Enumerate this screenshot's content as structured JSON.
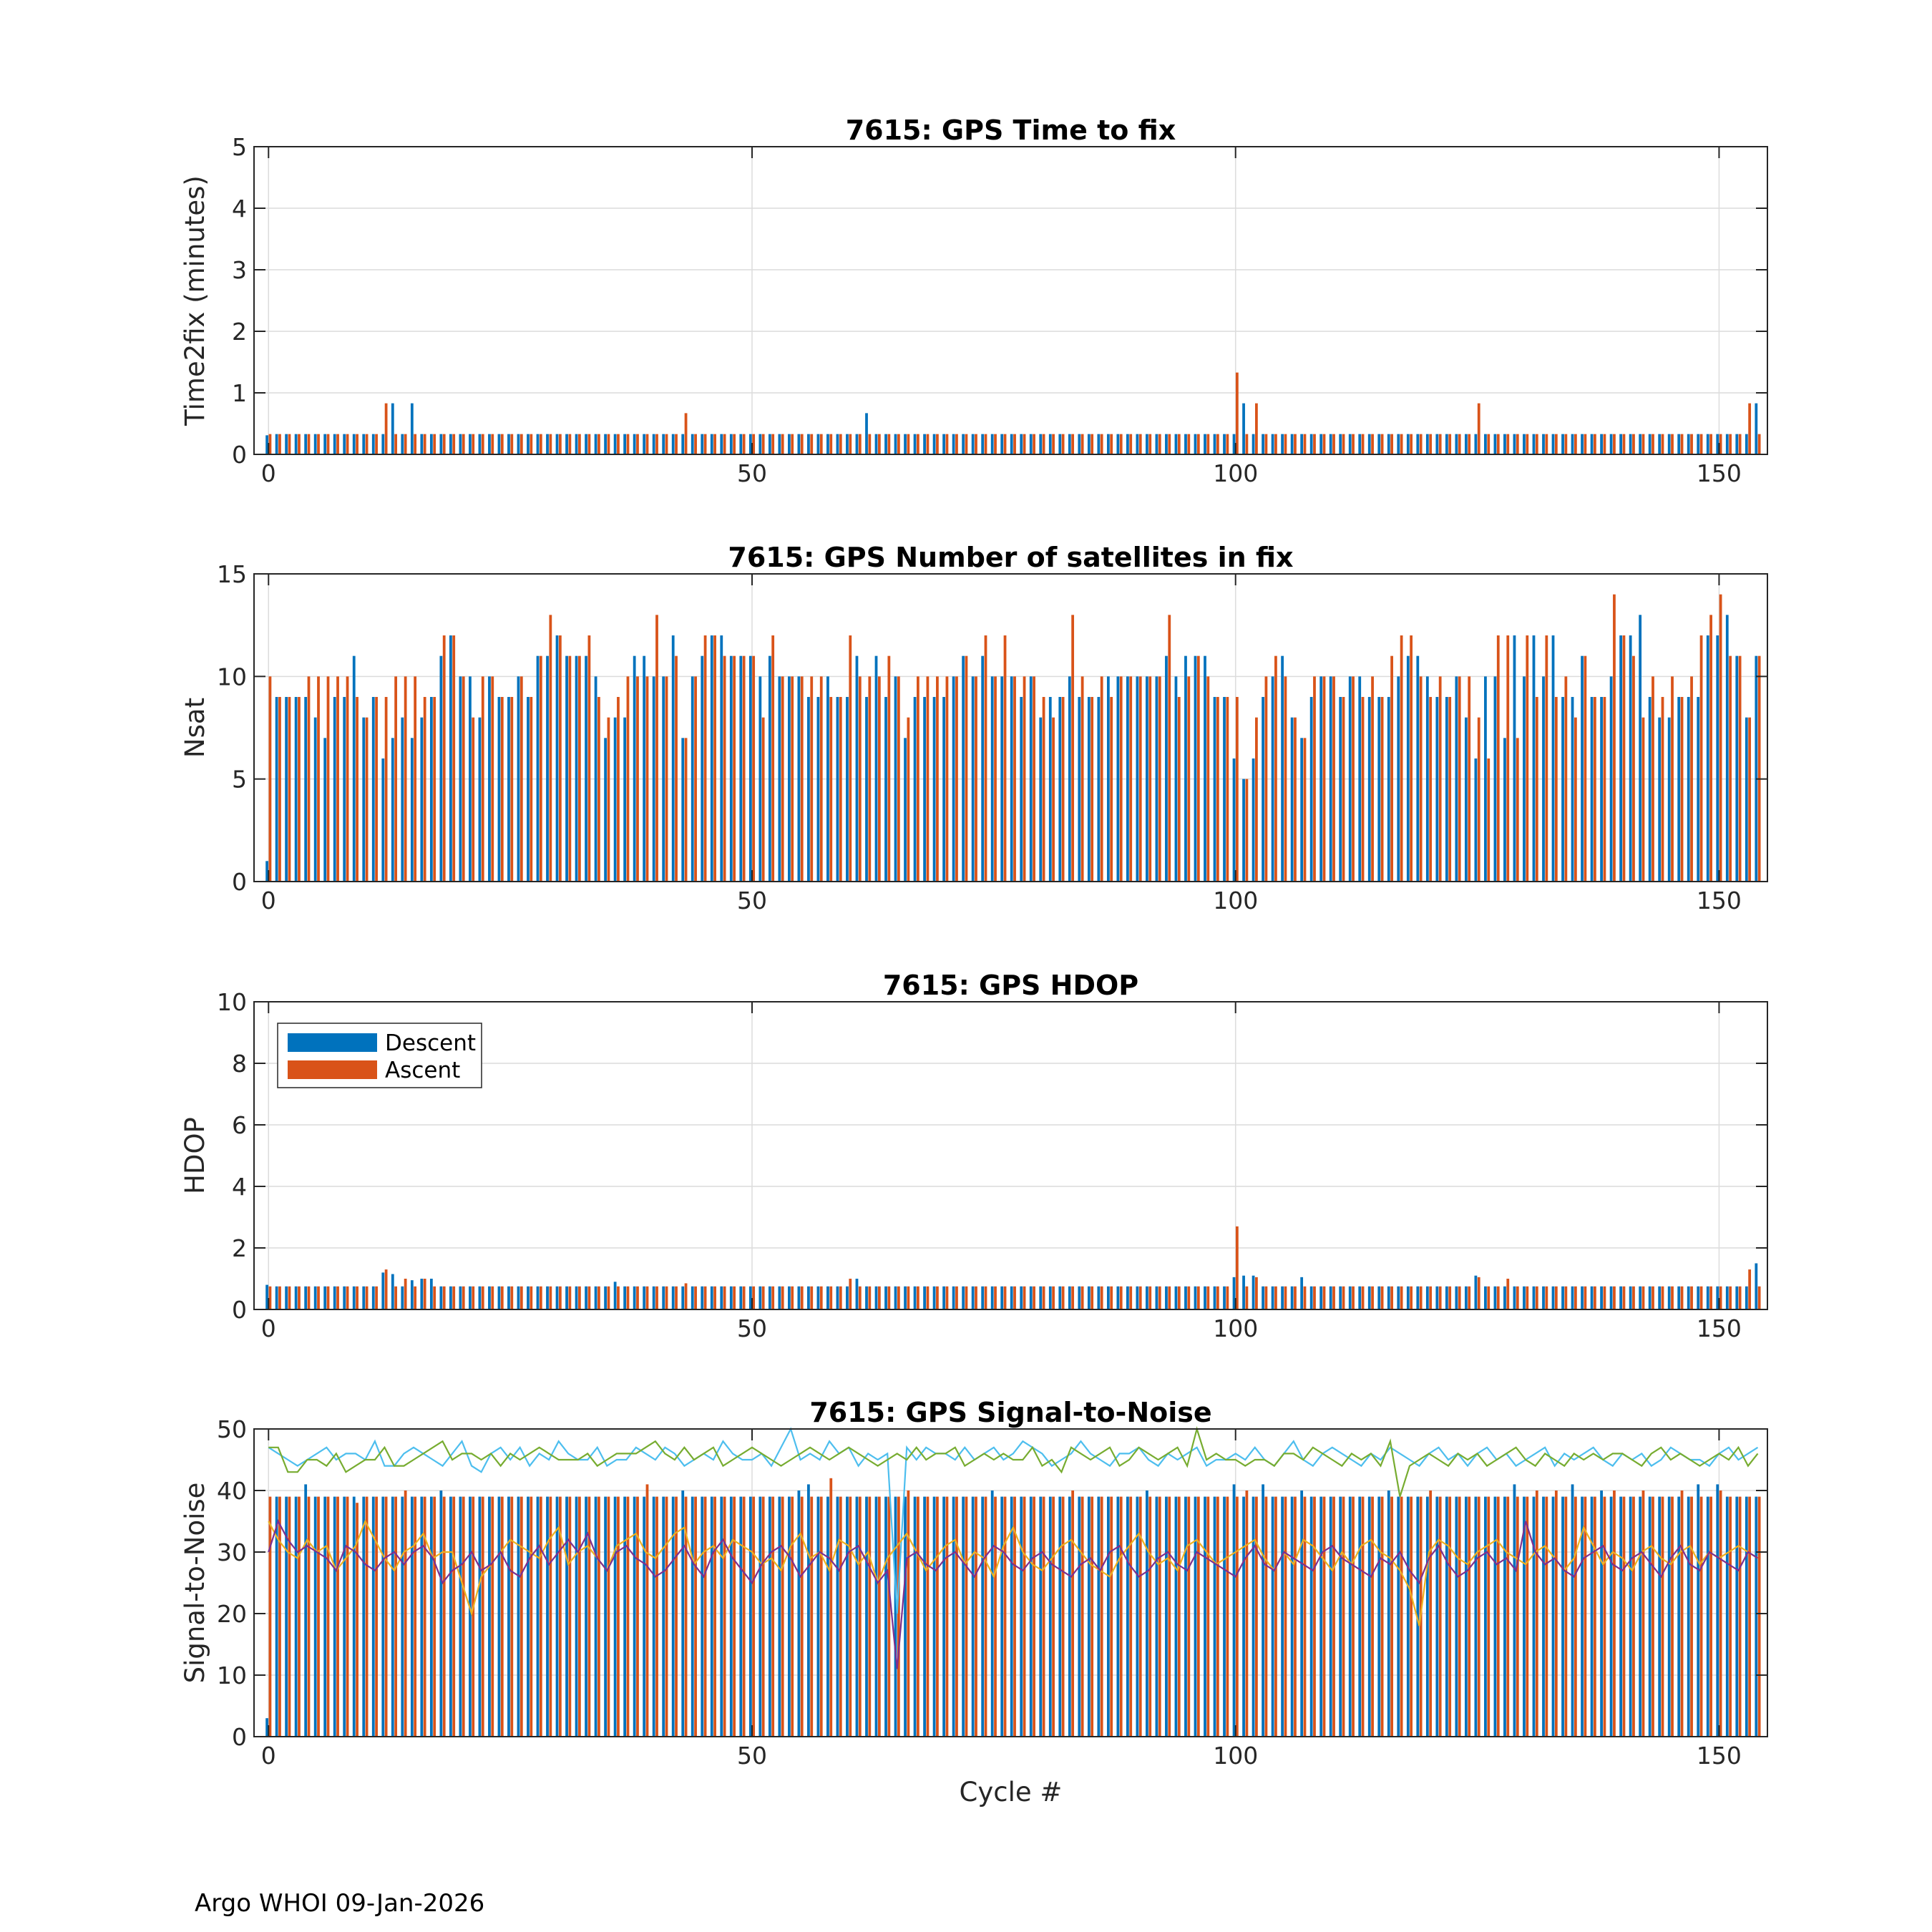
{
  "footer": "Argo WHOI 09-Jan-2026",
  "colors": {
    "descent": "#0072BD",
    "ascent": "#D95319",
    "snr_lines": [
      "#4DBEEE",
      "#77AC30",
      "#EDB120",
      "#7E2F8E"
    ],
    "grid": "#dcdcdc",
    "axis": "#262626"
  },
  "legend": {
    "location": "northwest",
    "entries": [
      "Descent",
      "Ascent"
    ]
  },
  "chart_data": [
    {
      "type": "bar",
      "title": "7615: GPS Time to fix",
      "xlabel": "",
      "ylabel": "Time2fix (minutes)",
      "xlim": [
        -1.5,
        155
      ],
      "ylim": [
        0,
        5
      ],
      "xticks": [
        0,
        50,
        100,
        150
      ],
      "yticks": [
        0,
        1,
        2,
        3,
        4,
        5
      ],
      "x": "cycles 0-154",
      "baseline": {
        "descent": 0.33,
        "ascent": 0.33
      },
      "overrides": {
        "descent": {
          "0": 0.31,
          "13": 0.83,
          "15": 0.83,
          "62": 0.67,
          "101": 0.83,
          "154": 0.83
        },
        "ascent": {
          "12": 0.83,
          "43": 0.67,
          "100": 1.33,
          "102": 0.83,
          "125": 0.83,
          "153": 0.83
        }
      }
    },
    {
      "type": "bar",
      "title": "7615: GPS Number of satellites in fix",
      "xlabel": "",
      "ylabel": "Nsat",
      "xlim": [
        -1.5,
        155
      ],
      "ylim": [
        0,
        15
      ],
      "xticks": [
        0,
        50,
        100,
        150
      ],
      "yticks": [
        0,
        5,
        10,
        15
      ],
      "x": "cycles 0-154",
      "series": [
        {
          "name": "Descent",
          "values": [
            1,
            9,
            9,
            9,
            9,
            8,
            7,
            9,
            9,
            11,
            8,
            9,
            6,
            7,
            8,
            7,
            8,
            9,
            11,
            12,
            10,
            10,
            8,
            10,
            9,
            9,
            10,
            9,
            11,
            11,
            12,
            11,
            11,
            11,
            10,
            7,
            8,
            8,
            11,
            11,
            10,
            10,
            12,
            7,
            10,
            11,
            12,
            12,
            11,
            11,
            11,
            10,
            11,
            10,
            10,
            10,
            9,
            9,
            10,
            9,
            9,
            11,
            9,
            11,
            9,
            10,
            7,
            9,
            9,
            9,
            9,
            10,
            11,
            10,
            11,
            10,
            10,
            10,
            9,
            10,
            8,
            9,
            9,
            10,
            9,
            9,
            9,
            10,
            10,
            10,
            10,
            10,
            10,
            11,
            10,
            11,
            11,
            11,
            9,
            9,
            6,
            5,
            6,
            9,
            10,
            11,
            8,
            7,
            9,
            10,
            10,
            9,
            10,
            10,
            9,
            9,
            9,
            10,
            11,
            11,
            10,
            9,
            9,
            10,
            8,
            6,
            10,
            10,
            7,
            12,
            10,
            12,
            10,
            12,
            9,
            9,
            11,
            9,
            9,
            10,
            12,
            12,
            13,
            9,
            8,
            8,
            9,
            9,
            9,
            12,
            12,
            13,
            11,
            8,
            11,
            7
          ],
          "note": "156 values read, last used up to index 154"
        },
        {
          "name": "Ascent",
          "values": [
            10,
            9,
            9,
            9,
            10,
            10,
            10,
            10,
            10,
            9,
            8,
            9,
            9,
            10,
            10,
            10,
            9,
            9,
            12,
            12,
            10,
            8,
            10,
            10,
            9,
            9,
            10,
            9,
            11,
            13,
            12,
            11,
            11,
            12,
            9,
            8,
            9,
            10,
            10,
            10,
            13,
            10,
            11,
            7,
            10,
            12,
            12,
            11,
            11,
            11,
            11,
            8,
            12,
            10,
            10,
            10,
            10,
            10,
            9,
            9,
            12,
            10,
            10,
            10,
            11,
            10,
            8,
            10,
            10,
            10,
            10,
            10,
            11,
            10,
            12,
            10,
            12,
            10,
            10,
            10,
            9,
            8,
            9,
            13,
            10,
            9,
            10,
            9,
            10,
            10,
            10,
            10,
            10,
            13,
            9,
            10,
            11,
            10,
            9,
            9,
            9,
            5,
            8,
            10,
            11,
            10,
            8,
            7,
            10,
            10,
            10,
            9,
            10,
            9,
            10,
            9,
            11,
            12,
            12,
            10,
            9,
            10,
            9,
            10,
            10,
            8,
            6,
            12,
            12,
            7,
            12,
            9,
            12,
            9,
            10,
            8,
            11,
            9,
            9,
            14,
            12,
            11,
            8,
            10,
            9,
            10,
            9,
            10,
            12,
            13,
            14,
            11,
            11,
            8,
            11,
            6
          ]
        }
      ]
    },
    {
      "type": "bar",
      "title": "7615: GPS HDOP",
      "xlabel": "",
      "ylabel": "HDOP",
      "xlim": [
        -1.5,
        155
      ],
      "ylim": [
        0,
        10
      ],
      "xticks": [
        0,
        50,
        100,
        150
      ],
      "yticks": [
        0,
        2,
        4,
        6,
        8,
        10
      ],
      "x": "cycles 0-154",
      "baseline": {
        "descent": 0.75,
        "ascent": 0.75
      },
      "overrides": {
        "descent": {
          "0": 0.8,
          "12": 1.2,
          "13": 1.15,
          "15": 0.95,
          "16": 1.0,
          "17": 1.0,
          "36": 0.9,
          "61": 1.0,
          "100": 1.05,
          "101": 1.1,
          "102": 1.1,
          "107": 1.05,
          "125": 1.1,
          "154": 1.5
        },
        "ascent": {
          "12": 1.3,
          "14": 1.0,
          "16": 1.0,
          "43": 0.85,
          "60": 1.0,
          "100": 2.7,
          "102": 1.05,
          "125": 1.05,
          "128": 1.0,
          "153": 1.3
        }
      }
    },
    {
      "type": "bar",
      "title": "7615: GPS Signal-to-Noise",
      "xlabel": "Cycle #",
      "ylabel": "Signal-to-Noise",
      "xlim": [
        -1.5,
        155
      ],
      "ylim": [
        0,
        50
      ],
      "xticks": [
        0,
        50,
        100,
        150
      ],
      "yticks": [
        0,
        10,
        20,
        30,
        40,
        50
      ],
      "x": "cycles 0-154",
      "bars": {
        "descent_baseline": 39,
        "ascent_baseline": 39,
        "descent_overrides": {
          "0": 3,
          "4": 41,
          "8": 39,
          "18": 40,
          "43": 40,
          "47": 39,
          "55": 40,
          "56": 41,
          "75": 40,
          "91": 40,
          "100": 41,
          "103": 41,
          "107": 40,
          "116": 40,
          "129": 41,
          "135": 41,
          "138": 40,
          "148": 41,
          "150": 41
        },
        "ascent_overrides": {
          "9": 38,
          "14": 40,
          "20": 39,
          "39": 41,
          "58": 42,
          "66": 40,
          "83": 40,
          "101": 40,
          "120": 40,
          "131": 40,
          "133": 40,
          "139": 40,
          "142": 40,
          "146": 40,
          "150": 40
        }
      },
      "lines": [
        {
          "name": "max",
          "color": "#4DBEEE",
          "values": [
            47,
            46,
            45,
            44,
            45,
            46,
            47,
            45,
            46,
            46,
            45,
            48,
            44,
            44,
            46,
            47,
            46,
            45,
            44,
            46,
            48,
            44,
            43,
            46,
            47,
            45,
            47,
            44,
            46,
            45,
            48,
            46,
            45,
            45,
            47,
            44,
            45,
            45,
            47,
            46,
            45,
            47,
            46,
            44,
            45,
            46,
            45,
            48,
            46,
            45,
            45,
            46,
            44,
            47,
            50,
            45,
            46,
            45,
            48,
            46,
            47,
            44,
            46,
            45,
            46,
            20,
            47,
            45,
            47,
            46,
            46,
            45,
            47,
            45,
            46,
            47,
            45,
            46,
            48,
            47,
            46,
            44,
            45,
            46,
            48,
            46,
            45,
            44,
            46,
            46,
            47,
            45,
            44,
            46,
            45,
            46,
            47,
            44,
            45,
            45,
            46,
            45,
            47,
            45,
            44,
            46,
            48,
            45,
            44,
            46,
            47,
            46,
            45,
            44,
            46,
            45,
            47,
            46,
            45,
            44,
            46,
            47,
            45,
            46,
            44,
            46,
            47,
            45,
            46,
            44,
            45,
            46,
            47,
            44,
            46,
            45,
            46,
            47,
            45,
            44,
            46,
            45,
            46,
            44,
            45,
            47,
            46,
            45,
            45,
            44,
            46,
            47,
            45,
            46,
            47,
            42
          ]
        },
        {
          "name": "mean-high",
          "color": "#77AC30",
          "values": [
            47,
            47,
            43,
            43,
            45,
            45,
            44,
            46,
            43,
            44,
            45,
            45,
            47,
            44,
            44,
            45,
            46,
            47,
            48,
            45,
            46,
            46,
            45,
            46,
            44,
            46,
            45,
            46,
            47,
            46,
            45,
            45,
            45,
            46,
            44,
            45,
            46,
            46,
            46,
            47,
            48,
            46,
            45,
            47,
            45,
            46,
            47,
            44,
            45,
            46,
            47,
            46,
            45,
            44,
            45,
            46,
            47,
            46,
            45,
            46,
            47,
            46,
            45,
            44,
            45,
            46,
            45,
            47,
            45,
            46,
            46,
            47,
            44,
            45,
            46,
            45,
            46,
            45,
            45,
            47,
            44,
            45,
            43,
            47,
            46,
            45,
            46,
            47,
            44,
            45,
            47,
            46,
            45,
            46,
            47,
            44,
            50,
            45,
            46,
            45,
            45,
            44,
            45,
            45,
            44,
            46,
            46,
            45,
            47,
            46,
            45,
            44,
            46,
            45,
            46,
            44,
            48,
            39,
            44,
            45,
            46,
            45,
            44,
            46,
            45,
            46,
            44,
            45,
            46,
            47,
            45,
            44,
            46,
            45,
            44,
            46,
            45,
            46,
            45,
            46,
            46,
            45,
            44,
            46,
            47,
            45,
            46,
            45,
            44,
            45,
            46,
            45,
            47,
            44,
            46,
            43
          ]
        },
        {
          "name": "mean",
          "color": "#EDB120",
          "values": [
            35,
            32,
            30,
            29,
            32,
            30,
            31,
            27,
            29,
            31,
            35,
            32,
            29,
            27,
            30,
            31,
            33,
            29,
            30,
            30,
            25,
            20,
            26,
            28,
            30,
            32,
            31,
            30,
            29,
            32,
            34,
            28,
            30,
            31,
            29,
            27,
            31,
            32,
            33,
            30,
            29,
            31,
            33,
            34,
            28,
            30,
            31,
            29,
            32,
            31,
            30,
            28,
            29,
            27,
            31,
            33,
            29,
            30,
            27,
            32,
            31,
            28,
            30,
            25,
            29,
            31,
            33,
            30,
            27,
            29,
            31,
            32,
            28,
            30,
            29,
            26,
            31,
            34,
            30,
            28,
            27,
            29,
            31,
            32,
            30,
            28,
            27,
            26,
            29,
            31,
            33,
            30,
            28,
            29,
            27,
            31,
            32,
            30,
            28,
            29,
            30,
            31,
            32,
            29,
            27,
            30,
            28,
            32,
            31,
            29,
            27,
            30,
            28,
            31,
            32,
            30,
            29,
            27,
            24,
            18,
            30,
            32,
            31,
            29,
            28,
            30,
            31,
            32,
            30,
            29,
            28,
            30,
            31,
            29,
            27,
            29,
            34,
            31,
            28,
            30,
            29,
            27,
            30,
            31,
            29,
            28,
            30,
            31,
            28,
            30,
            29,
            30,
            31,
            30,
            29,
            34
          ]
        },
        {
          "name": "min",
          "color": "#7E2F8E",
          "values": [
            30,
            35,
            32,
            30,
            31,
            30,
            29,
            27,
            31,
            30,
            28,
            27,
            29,
            30,
            28,
            30,
            31,
            29,
            25,
            27,
            28,
            30,
            27,
            28,
            30,
            27,
            26,
            29,
            31,
            28,
            30,
            32,
            30,
            33,
            29,
            27,
            30,
            31,
            29,
            28,
            26,
            27,
            29,
            31,
            28,
            26,
            30,
            32,
            29,
            27,
            25,
            28,
            30,
            31,
            29,
            26,
            28,
            30,
            29,
            27,
            30,
            31,
            28,
            25,
            27,
            11,
            29,
            30,
            28,
            27,
            29,
            30,
            28,
            26,
            29,
            31,
            30,
            28,
            27,
            29,
            30,
            28,
            27,
            26,
            28,
            29,
            27,
            30,
            31,
            28,
            26,
            27,
            29,
            30,
            28,
            27,
            30,
            29,
            28,
            27,
            26,
            29,
            31,
            28,
            27,
            30,
            29,
            28,
            27,
            30,
            31,
            29,
            28,
            27,
            26,
            29,
            28,
            30,
            27,
            25,
            29,
            31,
            28,
            26,
            27,
            29,
            30,
            28,
            29,
            27,
            35,
            30,
            28,
            29,
            27,
            26,
            29,
            30,
            31,
            28,
            27,
            29,
            30,
            28,
            26,
            29,
            31,
            28,
            27,
            30,
            29,
            28,
            27,
            30,
            29,
            28
          ]
        }
      ]
    }
  ]
}
